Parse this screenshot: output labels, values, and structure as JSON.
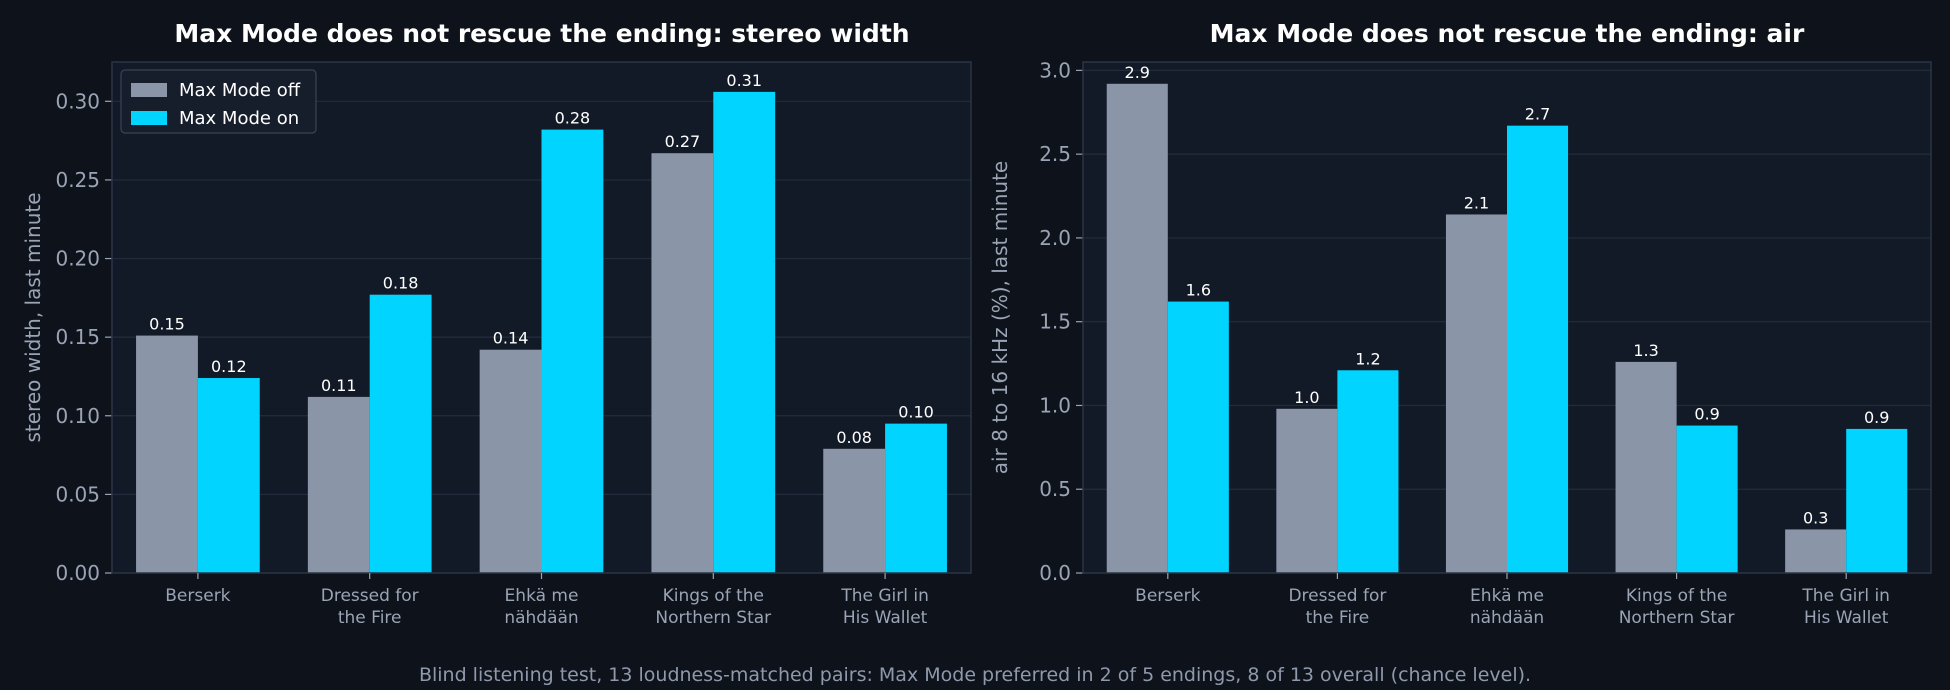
{
  "colors": {
    "figure_bg": "#0e121b",
    "plot_bg": "#131a27",
    "grid": "#222c3d",
    "frame": "#2b3546",
    "off": "#8a95a8",
    "on": "#00d4ff",
    "text": "#9aa4b5",
    "title": "#ffffff",
    "label": "#ffffff"
  },
  "footer": "Blind listening test, 13 loudness-matched pairs: Max Mode preferred in 2 of 5 endings, 8 of 13 overall (chance level).",
  "chart_data": [
    {
      "type": "bar",
      "title": "Max Mode does not rescue the ending: stereo width",
      "xlabel": "",
      "ylabel": "stereo width, last minute",
      "ylim": [
        0,
        0.325
      ],
      "yticks": [
        "0.00",
        "0.05",
        "0.10",
        "0.15",
        "0.20",
        "0.25",
        "0.30"
      ],
      "ytick_values": [
        0,
        0.05,
        0.1,
        0.15,
        0.2,
        0.25,
        0.3
      ],
      "grid": true,
      "legend": "top-left",
      "categories": [
        [
          "Berserk"
        ],
        [
          "Dressed for",
          "the Fire"
        ],
        [
          "Ehkä me",
          "nähdään"
        ],
        [
          "Kings of the",
          "Northern Star"
        ],
        [
          "The Girl in",
          "His Wallet"
        ]
      ],
      "series": [
        {
          "name": "Max Mode off",
          "values": [
            0.151,
            0.112,
            0.142,
            0.267,
            0.079
          ],
          "labels": [
            "0.15",
            "0.11",
            "0.14",
            "0.27",
            "0.08"
          ]
        },
        {
          "name": "Max Mode on",
          "values": [
            0.124,
            0.177,
            0.282,
            0.306,
            0.095
          ],
          "labels": [
            "0.12",
            "0.18",
            "0.28",
            "0.31",
            "0.10"
          ]
        }
      ]
    },
    {
      "type": "bar",
      "title": "Max Mode does not rescue the ending: air",
      "xlabel": "",
      "ylabel": "air 8 to 16 kHz (%), last minute",
      "ylim": [
        0,
        3.05
      ],
      "yticks": [
        "0.0",
        "0.5",
        "1.0",
        "1.5",
        "2.0",
        "2.5",
        "3.0"
      ],
      "ytick_values": [
        0,
        0.5,
        1.0,
        1.5,
        2.0,
        2.5,
        3.0
      ],
      "grid": true,
      "legend": "none",
      "categories": [
        [
          "Berserk"
        ],
        [
          "Dressed for",
          "the Fire"
        ],
        [
          "Ehkä me",
          "nähdään"
        ],
        [
          "Kings of the",
          "Northern Star"
        ],
        [
          "The Girl in",
          "His Wallet"
        ]
      ],
      "series": [
        {
          "name": "Max Mode off",
          "values": [
            2.92,
            0.98,
            2.14,
            1.26,
            0.26
          ],
          "labels": [
            "2.9",
            "1.0",
            "2.1",
            "1.3",
            "0.3"
          ]
        },
        {
          "name": "Max Mode on",
          "values": [
            1.62,
            1.21,
            2.67,
            0.88,
            0.86
          ],
          "labels": [
            "1.6",
            "1.2",
            "2.7",
            "0.9",
            "0.9"
          ]
        }
      ]
    }
  ]
}
